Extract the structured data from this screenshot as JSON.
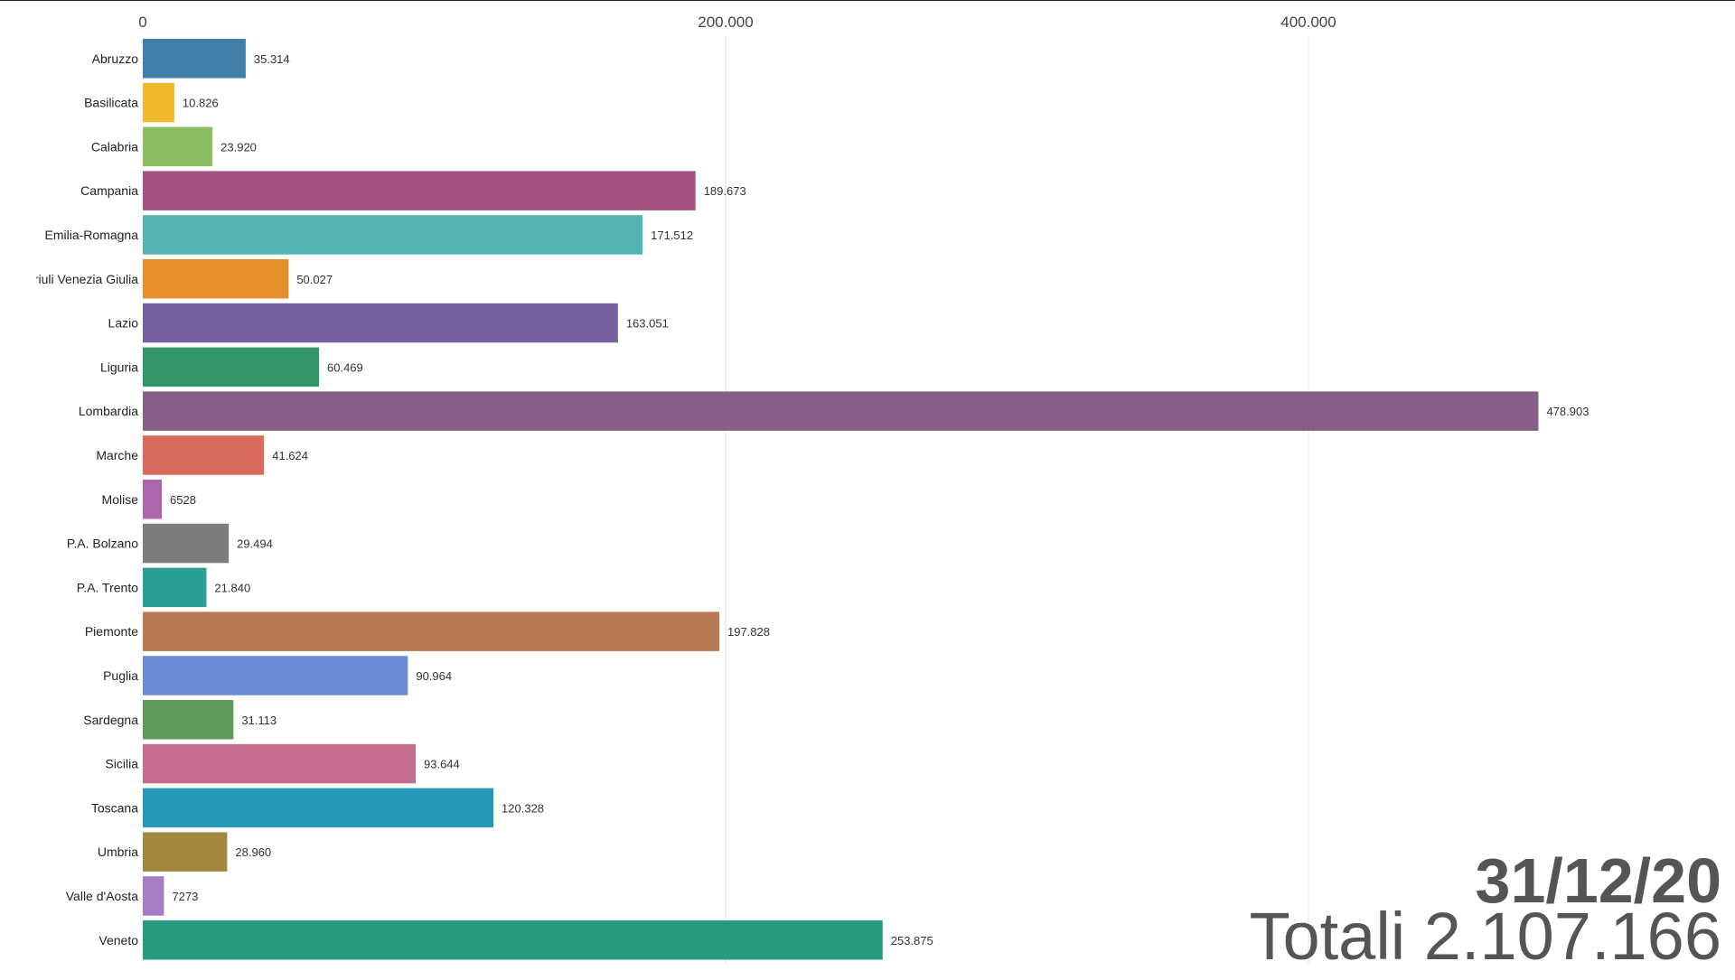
{
  "chart_data": {
    "type": "bar",
    "orientation": "horizontal",
    "title": "",
    "xlabel": "",
    "ylabel": "",
    "xlim": [
      0,
      500000
    ],
    "x_ticks": [
      0,
      200000,
      400000
    ],
    "x_tick_labels": [
      "0",
      "200.000",
      "400.000"
    ],
    "grid": true,
    "categories": [
      "Abruzzo",
      "Basilicata",
      "Calabria",
      "Campania",
      "Emilia-Romagna",
      "Friuli Venezia Giulia",
      "Lazio",
      "Liguria",
      "Lombardia",
      "Marche",
      "Molise",
      "P.A. Bolzano",
      "P.A. Trento",
      "Piemonte",
      "Puglia",
      "Sardegna",
      "Sicilia",
      "Toscana",
      "Umbria",
      "Valle d'Aosta",
      "Veneto"
    ],
    "values": [
      35314,
      10826,
      23920,
      189673,
      171512,
      50027,
      163051,
      60469,
      478903,
      41624,
      6528,
      29494,
      21840,
      197828,
      90964,
      31113,
      93644,
      120328,
      28960,
      7273,
      253875
    ],
    "value_labels": [
      "35.314",
      "10.826",
      "23.920",
      "189.673",
      "171.512",
      "50.027",
      "163.051",
      "60.469",
      "478.903",
      "41.624",
      "6528",
      "29.494",
      "21.840",
      "197.828",
      "90.964",
      "31.113",
      "93.644",
      "120.328",
      "28.960",
      "7273",
      "253.875"
    ],
    "colors": [
      "#3f7fa8",
      "#f0b92e",
      "#8bbd61",
      "#a55283",
      "#55b3b3",
      "#e6902c",
      "#7661a0",
      "#33966b",
      "#875e87",
      "#d86b5b",
      "#ac67ac",
      "#7d7d7d",
      "#2b9e96",
      "#b87a55",
      "#6b8bd3",
      "#5f9a5c",
      "#c56d8d",
      "#2699b9",
      "#a2873f",
      "#a57fc4",
      "#269b7d"
    ]
  },
  "overlay": {
    "date": "31/12/20",
    "total": "Totali 2.107.166"
  }
}
